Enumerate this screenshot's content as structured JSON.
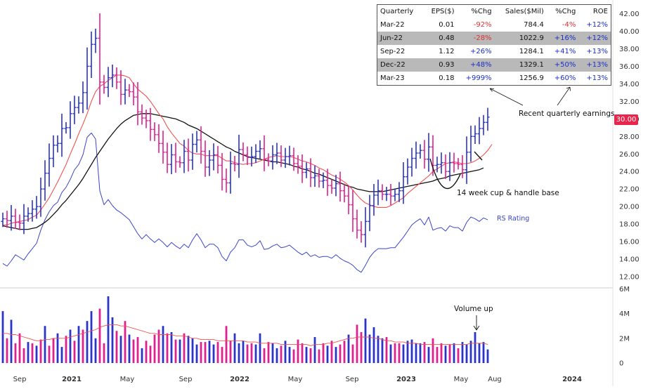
{
  "chart_data": {
    "type": "candlestick",
    "price_axis": {
      "ticks": [
        "12.00",
        "14.00",
        "16.00",
        "18.00",
        "20.00",
        "22.00",
        "24.00",
        "26.00",
        "28.00",
        "30.00",
        "32.00",
        "34.00",
        "36.00",
        "38.00",
        "40.00",
        "42.00"
      ],
      "ylim": [
        11,
        42.5
      ]
    },
    "volume_axis": {
      "ticks": [
        "0",
        "2M",
        "4M",
        "6M"
      ],
      "ylim": [
        0,
        6000000
      ]
    },
    "x_ticks": [
      "Sep",
      "2021",
      "May",
      "Sep",
      "2022",
      "May",
      "Sep",
      "2023",
      "May",
      "Aug",
      "2024"
    ],
    "last_price": "30.00",
    "price_weekly": {
      "close": [
        18.6,
        18.4,
        18.9,
        18.2,
        18.1,
        18.9,
        19.2,
        19.7,
        20,
        22,
        23.8,
        25.5,
        27,
        27.2,
        28.9,
        29,
        30.6,
        31.3,
        31.8,
        33,
        36,
        38.5,
        39.2,
        34.2,
        33.6,
        34.7,
        35,
        34.2,
        32.8,
        33.3,
        33.1,
        32.5,
        30.8,
        30.1,
        29.8,
        28.8,
        28.2,
        27.2,
        26.2,
        24.8,
        25.9,
        25.1,
        25,
        26.3,
        25.3,
        27.1,
        27.6,
        26.3,
        24.5,
        25.3,
        25.9,
        24.7,
        23.1,
        22.7,
        24.9,
        24.8,
        26.5,
        25.9,
        25.6,
        25.7,
        26.3,
        26.6,
        25.4,
        25.2,
        25.9,
        26.1,
        25.3,
        25.7,
        25.8,
        24.9,
        24.6,
        23.9,
        24.3,
        23.3,
        23.5,
        22.9,
        23,
        22.4,
        22.1,
        22.6,
        21.8,
        21.2,
        20.2,
        18.6,
        17.3,
        16.8,
        18.3,
        20.1,
        21.3,
        21.8,
        21.4,
        21.4,
        21.2,
        21.4,
        21.8,
        23.4,
        24.5,
        25.5,
        26.1,
        26.4,
        25.4,
        26.8,
        24.7,
        24.8,
        25,
        24,
        25,
        24.9,
        24.8,
        24.2,
        26.2,
        28,
        28.3,
        28.9,
        29.6,
        30.2
      ],
      "sma10": [
        17.9,
        17.9,
        18.1,
        18.2,
        18.3,
        18.4,
        18.5,
        18.8,
        19,
        19.6,
        20.3,
        21,
        21.9,
        22.8,
        23.8,
        24.8,
        26,
        27.1,
        28.3,
        29.4,
        30.6,
        32,
        33.1,
        33.7,
        34,
        34.4,
        34.7,
        35,
        35,
        34.9,
        34.7,
        34,
        33.4,
        33,
        32.6,
        32,
        31.3,
        30.6,
        30,
        29.1,
        28.4,
        27.8,
        27.2,
        26.9,
        26.4,
        26.1,
        26,
        26,
        25.8,
        25.8,
        25.8,
        25.8,
        25.5,
        25.2,
        25.2,
        25,
        24.9,
        24.8,
        24.9,
        24.9,
        25,
        25.2,
        25.4,
        25.6,
        25.7,
        25.8,
        25.7,
        25.7,
        25.7,
        25.6,
        25.4,
        25.2,
        25.1,
        24.9,
        24.7,
        24.4,
        24.2,
        23.9,
        23.6,
        23.4,
        23.1,
        22.8,
        22.4,
        21.9,
        21.3,
        20.8,
        20.4,
        20.2,
        20,
        19.9,
        19.9,
        19.9,
        20.1,
        20.4,
        20.7,
        21,
        21.5,
        21.9,
        22.3,
        22.7,
        23.1,
        23.5,
        24,
        24.3,
        24.6,
        24.9,
        25,
        25.1,
        25,
        24.9,
        24.9,
        25,
        25.2,
        25.5,
        25.9,
        26.4,
        27.1
      ],
      "sma40": [
        17.8,
        17.7,
        17.6,
        17.5,
        17.4,
        17.4,
        17.4,
        17.5,
        17.6,
        17.9,
        18.2,
        18.6,
        19.1,
        19.6,
        20.2,
        20.7,
        21.3,
        21.9,
        22.5,
        23.2,
        24,
        24.8,
        25.6,
        26.3,
        27,
        27.7,
        28.3,
        28.9,
        29.4,
        29.8,
        30.1,
        30.4,
        30.5,
        30.6,
        30.6,
        30.6,
        30.5,
        30.4,
        30.3,
        30.2,
        30.1,
        30,
        29.8,
        29.6,
        29.3,
        29.1,
        28.9,
        28.6,
        28.3,
        28,
        27.7,
        27.4,
        27.1,
        26.8,
        26.6,
        26.3,
        26.1,
        25.9,
        25.7,
        25.6,
        25.5,
        25.4,
        25.3,
        25.2,
        25.1,
        25.1,
        25,
        24.9,
        24.8,
        24.6,
        24.5,
        24.3,
        24.2,
        24,
        23.8,
        23.7,
        23.5,
        23.3,
        23.1,
        22.9,
        22.7,
        22.5,
        22.3,
        22.2,
        22,
        21.9,
        21.8,
        21.7,
        21.7,
        21.7,
        21.7,
        21.8,
        21.9,
        22,
        22.1,
        22.2,
        22.3,
        22.4,
        22.5,
        22.6,
        22.7,
        22.8,
        22.9,
        23.1,
        23.2,
        23.3,
        23.5,
        23.6,
        23.7,
        23.8,
        23.9,
        24,
        24.1,
        24.2,
        24.4
      ]
    },
    "rs_line": [
      13.5,
      13.2,
      13.8,
      14.5,
      14.2,
      13.9,
      14.6,
      15.2,
      15.8,
      17.3,
      18.5,
      19.4,
      20.1,
      20.5,
      21.6,
      22.2,
      23.1,
      24.2,
      24.8,
      25.9,
      27.9,
      28.4,
      27.7,
      21.8,
      20.2,
      20.8,
      20.1,
      19.6,
      19.3,
      18.9,
      18.5,
      17.7,
      16.9,
      16.3,
      16.8,
      16.3,
      15.9,
      16.3,
      15.9,
      15.4,
      15.9,
      15.5,
      15.2,
      15.7,
      15.3,
      16.2,
      16.9,
      16.2,
      15.3,
      15.7,
      15.7,
      15.3,
      14.3,
      13.8,
      14.8,
      15.3,
      16.2,
      16.2,
      15.6,
      15.4,
      15.6,
      16.1,
      15.1,
      15.2,
      15.5,
      15.7,
      15.3,
      15.4,
      15.6,
      15.2,
      14.8,
      14.5,
      14.8,
      14.3,
      14.5,
      14.2,
      14.3,
      14.3,
      14.1,
      14.5,
      14.1,
      13.8,
      13.6,
      13.3,
      12.8,
      12.5,
      13.3,
      14.2,
      14.8,
      15.2,
      15.2,
      15.2,
      15.3,
      15.3,
      15.9,
      16.5,
      17.2,
      17.9,
      18.3,
      18.6,
      17.9,
      18.8,
      17.3,
      17.5,
      17.6,
      17.2,
      17.8,
      17.6,
      17.6,
      17.2,
      18.2,
      18.8,
      18.6,
      18.3,
      18.7,
      18.5
    ],
    "volume": [
      4.2,
      2,
      3.5,
      1.6,
      2.4,
      1.2,
      1.7,
      1.6,
      1.4,
      1.9,
      3,
      1.4,
      2,
      2.4,
      1.3,
      2.2,
      2.7,
      1.8,
      3,
      2.7,
      3.4,
      4.2,
      2,
      4.4,
      1.6,
      5.4,
      3.7,
      2.6,
      2.2,
      3.4,
      2.3,
      1.9,
      2.1,
      1.2,
      1.8,
      1.4,
      2.3,
      2.7,
      3,
      2.4,
      2.5,
      1.9,
      1.9,
      2.4,
      2.2,
      2,
      1.5,
      1.7,
      1.7,
      1.8,
      1.5,
      1.7,
      1.3,
      3,
      1.8,
      2.4,
      1.6,
      1.8,
      1.5,
      1.6,
      1.5,
      2.4,
      1.2,
      1.7,
      1.6,
      1.2,
      1.4,
      1.8,
      1.3,
      1.1,
      1.9,
      1.6,
      1.3,
      1.2,
      2.1,
      1.1,
      1.6,
      1.4,
      1.8,
      1.3,
      1.5,
      1.8,
      2.3,
      1.5,
      3.1,
      2.5,
      3.6,
      2.3,
      2.9,
      2.2,
      2,
      2.1,
      1.5,
      1.6,
      1.6,
      1.5,
      1.8,
      1.9,
      1.6,
      1.6,
      1.7,
      1.3,
      2,
      1.3,
      1.6,
      1.4,
      1.5,
      1.6,
      1.2,
      1.7,
      1.5,
      1.8,
      2.5,
      1.6,
      1.7,
      1.1
    ],
    "volume_up_weeks": [
      0,
      2,
      6,
      8,
      10,
      13,
      14,
      16,
      18,
      20,
      21,
      22,
      25,
      26,
      28,
      30,
      33,
      38,
      40,
      42,
      44,
      45,
      46,
      49,
      50,
      55,
      56,
      57,
      60,
      61,
      64,
      65,
      67,
      68,
      72,
      74,
      77,
      79,
      82,
      86,
      87,
      88,
      89,
      90,
      92,
      95,
      96,
      97,
      98,
      99,
      101,
      105,
      107,
      109,
      110,
      111,
      112,
      113,
      114,
      115
    ],
    "volume_ma": [
      2.4,
      2.4,
      2.3,
      2.3,
      2.2,
      2.1,
      2,
      1.9,
      1.8,
      1.8,
      1.9,
      1.9,
      2,
      2,
      2,
      2,
      2.1,
      2.2,
      2.3,
      2.4,
      2.5,
      2.6,
      2.7,
      2.9,
      3,
      3.1,
      3.1,
      3.1,
      3,
      3,
      2.9,
      2.8,
      2.7,
      2.6,
      2.5,
      2.4,
      2.4,
      2.3,
      2.3,
      2.3,
      2.3,
      2.2,
      2.2,
      2.2,
      2.1,
      2,
      2,
      1.9,
      1.9,
      1.9,
      1.9,
      1.8,
      1.8,
      1.8,
      1.8,
      1.8,
      1.8,
      1.8,
      1.7,
      1.7,
      1.7,
      1.6,
      1.6,
      1.6,
      1.6,
      1.6,
      1.5,
      1.5,
      1.5,
      1.5,
      1.5,
      1.5,
      1.5,
      1.4,
      1.5,
      1.5,
      1.5,
      1.6,
      1.6,
      1.7,
      1.8,
      1.9,
      2,
      2,
      2.1,
      2.1,
      2.1,
      2.1,
      2,
      2,
      1.9,
      1.8,
      1.8,
      1.7,
      1.7,
      1.7,
      1.6,
      1.6,
      1.6,
      1.5,
      1.5,
      1.5,
      1.5,
      1.5,
      1.5,
      1.5,
      1.5,
      1.5,
      1.5,
      1.5,
      1.5,
      1.6,
      1.6,
      1.6,
      1.6,
      1.5
    ],
    "annotations": [
      "Recent quarterly earnings.",
      "14 week cup & handle base",
      "RS Rating",
      "Volume up"
    ],
    "colors": {
      "up": "#2a34c8",
      "down": "#e0208f",
      "sma10": "#ef5350",
      "sma40": "#111111",
      "rs": "#3a45c8",
      "vol_ma": "#ef5350"
    }
  },
  "earnings_table": {
    "headers": [
      "Quarterly",
      "EPS($)",
      "%Chg",
      "Sales($Mil)",
      "%Chg",
      "ROE"
    ],
    "rows": [
      {
        "quarter": "Mar-22",
        "eps": "0.01",
        "eps_chg": "-92%",
        "sales": "784.4",
        "sales_chg": "-4%",
        "roe": "+12%"
      },
      {
        "quarter": "Jun-22",
        "eps": "0.48",
        "eps_chg": "-28%",
        "sales": "1022.9",
        "sales_chg": "+16%",
        "roe": "+12%"
      },
      {
        "quarter": "Sep-22",
        "eps": "1.12",
        "eps_chg": "+26%",
        "sales": "1284.1",
        "sales_chg": "+41%",
        "roe": "+13%"
      },
      {
        "quarter": "Dec-22",
        "eps": "0.93",
        "eps_chg": "+48%",
        "sales": "1329.1",
        "sales_chg": "+50%",
        "roe": "+13%"
      },
      {
        "quarter": "Mar-23",
        "eps": "0.18",
        "eps_chg": "+999%",
        "sales": "1256.9",
        "sales_chg": "+60%",
        "roe": "+13%"
      }
    ]
  }
}
